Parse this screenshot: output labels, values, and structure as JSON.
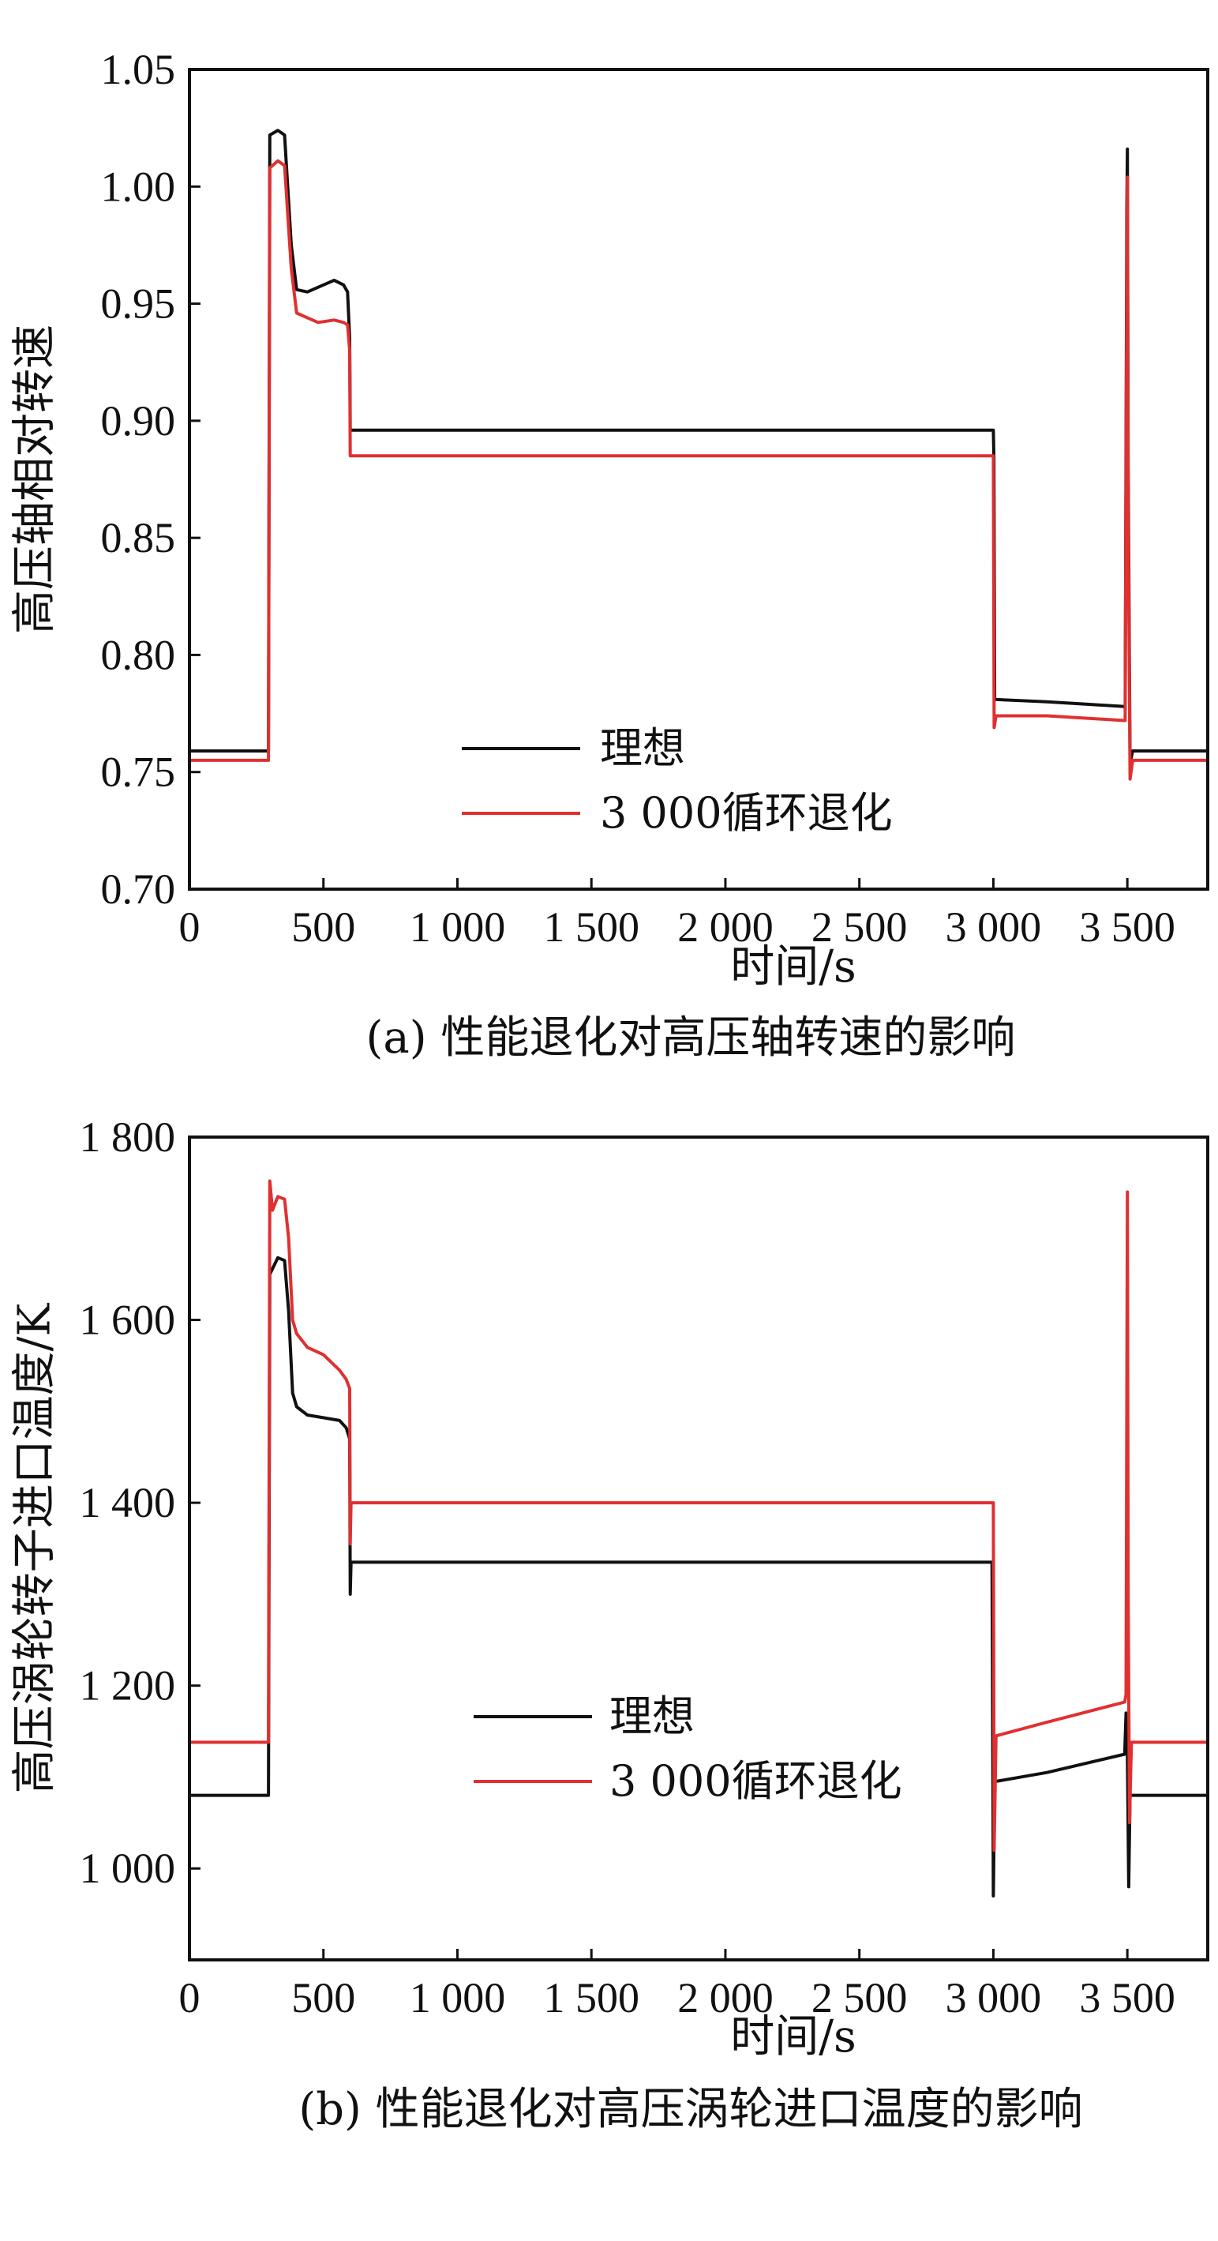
{
  "chart_data": [
    {
      "type": "line",
      "panel": "a",
      "caption": "(a) 性能退化对高压轴转速的影响",
      "xlabel": "时间/s",
      "ylabel": "高压轴相对转速",
      "xlim": [
        0,
        3800
      ],
      "ylim": [
        0.7,
        1.05
      ],
      "xticks": [
        0,
        500,
        1000,
        1500,
        2000,
        2500,
        3000,
        3500
      ],
      "xtick_labels": [
        "0",
        "500",
        "1 000",
        "1 500",
        "2 000",
        "2 500",
        "3 000",
        "3 500"
      ],
      "yticks": [
        0.7,
        0.75,
        0.8,
        0.85,
        0.9,
        0.95,
        1.0,
        1.05
      ],
      "ytick_labels": [
        "0.70",
        "0.75",
        "0.80",
        "0.85",
        "0.90",
        "0.95",
        "1.00",
        "1.05"
      ],
      "grid": false,
      "legend_position": "center-bottom",
      "series": [
        {
          "name": "理想",
          "color": "#111111",
          "points": [
            [
              0,
              0.759
            ],
            [
              295,
              0.759
            ],
            [
              300,
              1.022
            ],
            [
              330,
              1.024
            ],
            [
              355,
              1.022
            ],
            [
              380,
              0.975
            ],
            [
              400,
              0.956
            ],
            [
              440,
              0.955
            ],
            [
              480,
              0.957
            ],
            [
              540,
              0.96
            ],
            [
              575,
              0.958
            ],
            [
              590,
              0.955
            ],
            [
              598,
              0.935
            ],
            [
              600,
              0.896
            ],
            [
              2990,
              0.896
            ],
            [
              3000,
              0.896
            ],
            [
              3002,
              0.884
            ],
            [
              3005,
              0.781
            ],
            [
              3200,
              0.78
            ],
            [
              3490,
              0.778
            ],
            [
              3492,
              0.777
            ],
            [
              3498,
              0.99
            ],
            [
              3500,
              1.016
            ],
            [
              3503,
              0.88
            ],
            [
              3510,
              0.754
            ],
            [
              3520,
              0.759
            ],
            [
              3800,
              0.759
            ]
          ]
        },
        {
          "name": "3 000循环退化",
          "color": "#e03030",
          "points": [
            [
              0,
              0.755
            ],
            [
              295,
              0.755
            ],
            [
              300,
              1.008
            ],
            [
              330,
              1.011
            ],
            [
              355,
              1.009
            ],
            [
              380,
              0.965
            ],
            [
              400,
              0.946
            ],
            [
              440,
              0.944
            ],
            [
              480,
              0.942
            ],
            [
              540,
              0.943
            ],
            [
              575,
              0.942
            ],
            [
              590,
              0.941
            ],
            [
              598,
              0.93
            ],
            [
              600,
              0.885
            ],
            [
              2995,
              0.885
            ],
            [
              3000,
              0.885
            ],
            [
              3003,
              0.769
            ],
            [
              3010,
              0.774
            ],
            [
              3200,
              0.774
            ],
            [
              3490,
              0.772
            ],
            [
              3492,
              0.772
            ],
            [
              3498,
              0.96
            ],
            [
              3500,
              1.004
            ],
            [
              3503,
              0.86
            ],
            [
              3510,
              0.747
            ],
            [
              3520,
              0.755
            ],
            [
              3800,
              0.755
            ]
          ]
        }
      ]
    },
    {
      "type": "line",
      "panel": "b",
      "caption": "(b) 性能退化对高压涡轮进口温度的影响",
      "xlabel": "时间/s",
      "ylabel": "高压涡轮转子进口温度/K",
      "xlim": [
        0,
        3800
      ],
      "ylim": [
        900,
        1800
      ],
      "xticks": [
        0,
        500,
        1000,
        1500,
        2000,
        2500,
        3000,
        3500
      ],
      "xtick_labels": [
        "0",
        "500",
        "1 000",
        "1 500",
        "2 000",
        "2 500",
        "3 000",
        "3 500"
      ],
      "yticks": [
        1000,
        1200,
        1400,
        1600,
        1800
      ],
      "ytick_labels": [
        "1 000",
        "1 200",
        "1 400",
        "1 600",
        "1 800"
      ],
      "grid": false,
      "legend_position": "center-bottom",
      "series": [
        {
          "name": "理想",
          "color": "#111111",
          "points": [
            [
              0,
              1080
            ],
            [
              295,
              1080
            ],
            [
              300,
              1650
            ],
            [
              330,
              1668
            ],
            [
              355,
              1665
            ],
            [
              370,
              1610
            ],
            [
              385,
              1520
            ],
            [
              400,
              1505
            ],
            [
              440,
              1496
            ],
            [
              500,
              1493
            ],
            [
              560,
              1490
            ],
            [
              585,
              1482
            ],
            [
              598,
              1470
            ],
            [
              600,
              1300
            ],
            [
              603,
              1335
            ],
            [
              2990,
              1335
            ],
            [
              2995,
              1335
            ],
            [
              3000,
              970
            ],
            [
              3005,
              1095
            ],
            [
              3200,
              1105
            ],
            [
              3490,
              1125
            ],
            [
              3495,
              1170
            ],
            [
              3500,
              1125
            ],
            [
              3505,
              980
            ],
            [
              3510,
              1080
            ],
            [
              3800,
              1080
            ]
          ]
        },
        {
          "name": "3 000循环退化",
          "color": "#e03030",
          "points": [
            [
              0,
              1138
            ],
            [
              295,
              1138
            ],
            [
              300,
              1752
            ],
            [
              310,
              1720
            ],
            [
              330,
              1735
            ],
            [
              355,
              1732
            ],
            [
              370,
              1690
            ],
            [
              385,
              1600
            ],
            [
              400,
              1585
            ],
            [
              440,
              1570
            ],
            [
              500,
              1562
            ],
            [
              560,
              1545
            ],
            [
              585,
              1535
            ],
            [
              598,
              1525
            ],
            [
              600,
              1355
            ],
            [
              603,
              1400
            ],
            [
              2995,
              1400
            ],
            [
              3000,
              1400
            ],
            [
              3003,
              1020
            ],
            [
              3010,
              1145
            ],
            [
              3200,
              1160
            ],
            [
              3490,
              1182
            ],
            [
              3495,
              1190
            ],
            [
              3500,
              1740
            ],
            [
              3503,
              1300
            ],
            [
              3508,
              1050
            ],
            [
              3515,
              1138
            ],
            [
              3800,
              1138
            ]
          ]
        }
      ]
    }
  ]
}
